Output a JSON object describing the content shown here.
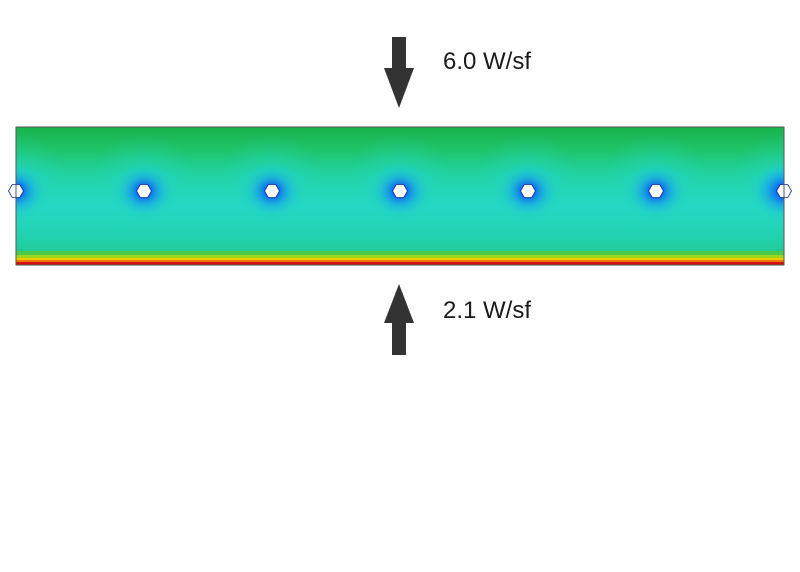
{
  "annotations": {
    "top_heat_flux": "6.0 W/sf",
    "bottom_heat_flux": "2.1 W/sf"
  },
  "colors": {
    "arrow": "#333333",
    "slab_top": "#1fb84a",
    "slab_mid": "#22d0b0",
    "near_pipe": "#1060e8",
    "pipe_hole": "#ffffff",
    "bottom_band_green": "#7ec81e",
    "bottom_band_yellow": "#f0c800",
    "bottom_band_orange": "#f07800",
    "bottom_band_red": "#d01010",
    "outline": "#444444"
  },
  "slab": {
    "pipe_count": 7,
    "pipe_shape": "hexagon"
  }
}
